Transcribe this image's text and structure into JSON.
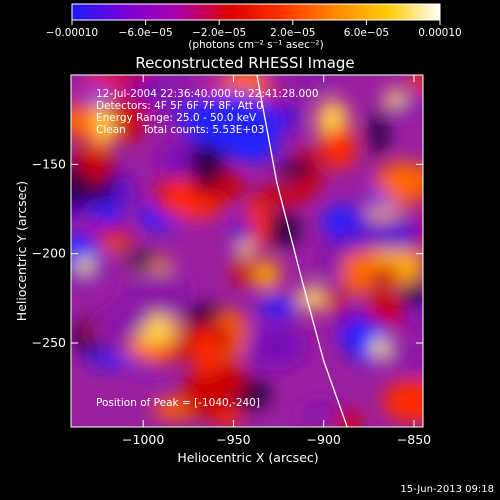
{
  "chart_data": {
    "type": "heatmap",
    "title": "Reconstructed RHESSI Image",
    "xlabel": "Heliocentric X (arcsec)",
    "ylabel": "Heliocentric Y (arcsec)",
    "xlim": [
      -1040,
      -845
    ],
    "ylim": [
      -297,
      -100
    ],
    "x_ticks": [
      -1000,
      -950,
      -900,
      -850
    ],
    "x_tick_labels": [
      "−1000",
      "−950",
      "−900",
      "−850"
    ],
    "y_ticks": [
      -150,
      -200,
      -250
    ],
    "y_tick_labels": [
      "−150",
      "−200",
      "−250"
    ],
    "colorbar": {
      "min": -0.0001,
      "max": 0.0001,
      "tick_labels": [
        "−0.00010",
        "−6.0e−05",
        "−2.0e−05",
        "2.0e−05",
        "6.0e−05",
        "0.00010"
      ],
      "unit_label": "(photons cm⁻² s⁻¹ asec⁻²)",
      "colors": [
        "#1a1aff",
        "#7a00d9",
        "#aa00aa",
        "#dd0000",
        "#ff3300",
        "#ff8800",
        "#ffcc00",
        "#ffffff"
      ]
    },
    "annotations": {
      "time_range": "12-Jul-2004 22:36:40.000 to 22:41:28.000",
      "detectors": "Detectors: 4F 5F 6F 7F 8F, Att 0",
      "energy": "Energy Range: 25.0 - 50.0 keV",
      "clean": "Clean     Total counts: 5.53E+03",
      "peak": "Position of Peak = [-1040,-240]"
    },
    "limb_curve": [
      [
        -937,
        -100
      ],
      [
        -926,
        -160
      ],
      [
        -912,
        -215
      ],
      [
        -900,
        -260
      ],
      [
        -887,
        -297
      ]
    ],
    "peak_position": [
      -1040,
      -240
    ]
  },
  "footer": {
    "timestamp": "15-Jun-2013 09:18"
  }
}
